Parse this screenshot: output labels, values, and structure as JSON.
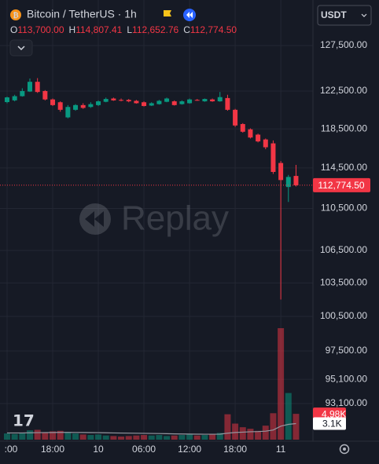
{
  "chart_data": {
    "type": "candlestick",
    "symbol": "Bitcoin / TetherUS · 1h",
    "currency": "USDT",
    "watermark": "Replay",
    "ohlc_legend": [
      {
        "key": "O",
        "label": "113,700.00"
      },
      {
        "key": "H",
        "label": "114,807.41"
      },
      {
        "key": "L",
        "label": "112,652.76"
      },
      {
        "key": "C",
        "label": "112,774.50"
      }
    ],
    "categories": [
      ":00",
      null,
      null,
      null,
      null,
      null,
      "18:00",
      null,
      null,
      null,
      null,
      null,
      "10",
      null,
      null,
      null,
      null,
      null,
      "06:00",
      null,
      null,
      null,
      null,
      null,
      "12:00",
      null,
      null,
      null,
      null,
      null,
      "18:00",
      null,
      null,
      null,
      null,
      null,
      "11",
      null,
      null
    ],
    "open": [
      121320,
      121500,
      121950,
      122450,
      123500,
      122500,
      121600,
      121300,
      119700,
      120500,
      121000,
      120800,
      121000,
      121350,
      121700,
      121550,
      121550,
      121450,
      121300,
      120950,
      121100,
      121350,
      121400,
      121100,
      121200,
      121550,
      121400,
      121600,
      121400,
      121750,
      120500,
      119000,
      118450,
      117900,
      117400,
      117000,
      115000,
      112600,
      113700
    ],
    "high": [
      121900,
      122100,
      122800,
      123860,
      123900,
      122600,
      121700,
      121400,
      121000,
      121100,
      121200,
      121300,
      121500,
      121800,
      121800,
      121700,
      121650,
      121550,
      121400,
      121300,
      121550,
      121800,
      121500,
      121500,
      121700,
      121650,
      121700,
      121700,
      122400,
      122100,
      120600,
      119100,
      118550,
      118000,
      117500,
      117300,
      115200,
      113800,
      114807.41
    ],
    "low": [
      121200,
      121400,
      121900,
      122400,
      122300,
      121500,
      120900,
      120300,
      119600,
      120400,
      120600,
      120700,
      120900,
      121300,
      121450,
      121400,
      121300,
      121150,
      120850,
      120900,
      121050,
      121300,
      120950,
      121050,
      121150,
      121450,
      121350,
      121350,
      121350,
      120400,
      118700,
      118100,
      117500,
      117100,
      116400,
      113900,
      102000,
      111130,
      112652.76
    ],
    "close": [
      121820,
      121950,
      122500,
      123500,
      122400,
      121600,
      121000,
      120500,
      120800,
      121000,
      120700,
      121100,
      121400,
      121650,
      121500,
      121500,
      121400,
      121200,
      120900,
      121200,
      121450,
      121700,
      121000,
      121400,
      121600,
      121500,
      121650,
      121400,
      121850,
      120500,
      118850,
      118200,
      117600,
      117200,
      116600,
      114100,
      113290,
      113600,
      112774.5
    ],
    "colors": {
      "up": "#089981",
      "down": "#f23645",
      "ma": "#9598a1"
    },
    "log_scale": true,
    "grid": true,
    "ylim": [
      90190,
      132700
    ],
    "yticks": [
      {
        "value": 127500,
        "label": "127,500.00"
      },
      {
        "value": 122500,
        "label": "122,500.00"
      },
      {
        "value": 118500,
        "label": "118,500.00"
      },
      {
        "value": 114500,
        "label": "114,500.00"
      },
      {
        "value": 110500,
        "label": "110,500.00"
      },
      {
        "value": 106500,
        "label": "106,500.00"
      },
      {
        "value": 103500,
        "label": "103,500.00"
      },
      {
        "value": 100500,
        "label": "100,500.00"
      },
      {
        "value": 97500,
        "label": "97,500.00"
      },
      {
        "value": 95100,
        "label": "95,100.00"
      },
      {
        "value": 93100,
        "label": "93,100.00"
      }
    ],
    "last_price": {
      "value": 112774.5,
      "label": "112,774.50"
    },
    "volume": {
      "values": [
        1200,
        1100,
        1300,
        1800,
        1900,
        1400,
        1600,
        1700,
        1500,
        1200,
        1000,
        900,
        1000,
        800,
        700,
        600,
        700,
        800,
        900,
        800,
        900,
        700,
        800,
        900,
        1000,
        800,
        900,
        1100,
        1300,
        4900,
        3100,
        2400,
        2100,
        1700,
        2700,
        5100,
        21500,
        9000,
        4980
      ],
      "value_labels": [
        null,
        null,
        null,
        null,
        null,
        null,
        null,
        null,
        null,
        null,
        null,
        null,
        null,
        null,
        null,
        null,
        null,
        null,
        null,
        null,
        null,
        null,
        null,
        null,
        null,
        null,
        null,
        null,
        null,
        null,
        null,
        null,
        null,
        null,
        null,
        null,
        null,
        null,
        "4.98K"
      ]
    },
    "volume_ma": {
      "values": [
        1300,
        1300,
        1300,
        1320,
        1350,
        1360,
        1380,
        1400,
        1400,
        1390,
        1380,
        1360,
        1350,
        1330,
        1300,
        1280,
        1260,
        1240,
        1220,
        1200,
        1180,
        1150,
        1120,
        1100,
        1080,
        1060,
        1050,
        1050,
        1060,
        1250,
        1380,
        1450,
        1520,
        1560,
        1640,
        1860,
        2600,
        2950,
        3100
      ],
      "value_labels": [
        null,
        null,
        null,
        null,
        null,
        null,
        null,
        null,
        null,
        null,
        null,
        null,
        null,
        null,
        null,
        null,
        null,
        null,
        null,
        null,
        null,
        null,
        null,
        null,
        null,
        null,
        null,
        null,
        null,
        null,
        null,
        null,
        null,
        null,
        null,
        null,
        null,
        null,
        "3.1K"
      ]
    }
  }
}
